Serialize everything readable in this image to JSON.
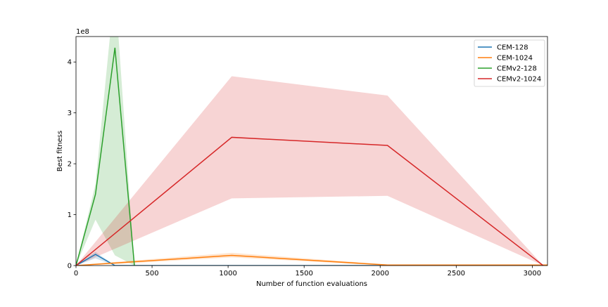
{
  "chart_data": {
    "type": "line",
    "title": "",
    "xlabel": "Number of function evaluations",
    "ylabel": "Best fitness",
    "y_scale_label": "1e8",
    "xlim": [
      0,
      3100
    ],
    "ylim": [
      0,
      4.5
    ],
    "x_ticks": [
      0,
      500,
      1000,
      1500,
      2000,
      2500,
      3000
    ],
    "y_ticks": [
      0,
      1,
      2,
      3,
      4
    ],
    "legend_position": "top-right",
    "grid": false,
    "series": [
      {
        "name": "CEM-128",
        "color": "#1f77b4",
        "x": [
          0,
          128,
          256,
          384,
          512,
          1024,
          2048,
          3072,
          3100
        ],
        "y": [
          0,
          0.22,
          0.0,
          0.0,
          0.0,
          0.0,
          0.0,
          0.0,
          0.0
        ],
        "lower": [
          0,
          0.14,
          0.0,
          0.0,
          0.0,
          0.0,
          0.0,
          0.0,
          0.0
        ],
        "upper": [
          0,
          0.27,
          0.0,
          0.0,
          0.0,
          0.0,
          0.0,
          0.0,
          0.0
        ]
      },
      {
        "name": "CEM-1024",
        "color": "#ff7f0e",
        "x": [
          0,
          256,
          1024,
          2048,
          3072,
          3100
        ],
        "y": [
          0,
          0.05,
          0.2,
          0.01,
          0.01,
          0.01
        ],
        "lower": [
          0,
          0.03,
          0.16,
          0.0,
          0.0,
          0.0
        ],
        "upper": [
          0,
          0.07,
          0.25,
          0.02,
          0.02,
          0.02
        ]
      },
      {
        "name": "CEMv2-128",
        "color": "#2ca02c",
        "x": [
          0,
          128,
          256,
          384
        ],
        "y": [
          0,
          1.4,
          4.28,
          0.0
        ],
        "lower": [
          0,
          0.9,
          0.2,
          0.0
        ],
        "upper": [
          0,
          1.6,
          5.5,
          0.0
        ]
      },
      {
        "name": "CEMv2-1024",
        "color": "#d62728",
        "x": [
          0,
          1024,
          2048,
          3072
        ],
        "y": [
          0,
          2.52,
          2.36,
          0.0
        ],
        "lower": [
          0,
          1.32,
          1.37,
          0.0
        ],
        "upper": [
          0,
          3.72,
          3.34,
          0.0
        ]
      }
    ]
  }
}
